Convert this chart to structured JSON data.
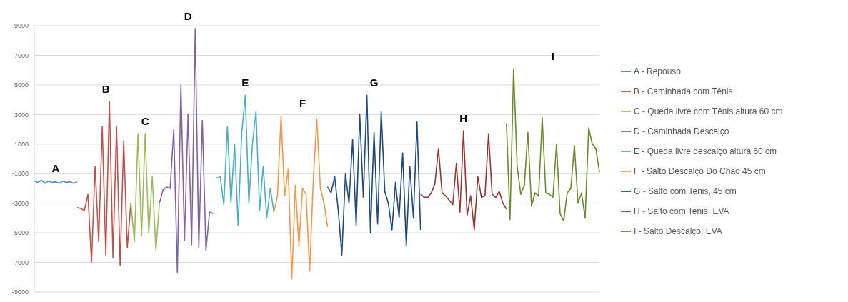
{
  "chart_data": {
    "type": "line",
    "categories": [
      null,
      null,
      null,
      null,
      null,
      null,
      null,
      null,
      null,
      null,
      null,
      null,
      null,
      null,
      null,
      null,
      null,
      null,
      null,
      null,
      null,
      null,
      null,
      null,
      null,
      null,
      null,
      null,
      null,
      null,
      null,
      null,
      null,
      null,
      null,
      null,
      null,
      null,
      null,
      null,
      null,
      null,
      null,
      null,
      null,
      null,
      null,
      null,
      null,
      null,
      null,
      null,
      null,
      null,
      null,
      null,
      null,
      null,
      null,
      null,
      null,
      null,
      null,
      null,
      null,
      null,
      null,
      null,
      null,
      null,
      null,
      null,
      null,
      null,
      null,
      null,
      null,
      null,
      null,
      null,
      null,
      null,
      null,
      null,
      null,
      null,
      null,
      null,
      null,
      null,
      null,
      null,
      null,
      null,
      null,
      null,
      null,
      null,
      null,
      null,
      null,
      null,
      null,
      null,
      null,
      null,
      null,
      null,
      null,
      null,
      null,
      null,
      null,
      null,
      null,
      null,
      null,
      null,
      null,
      null,
      null,
      null,
      null,
      null,
      null,
      null,
      null,
      null,
      null,
      null,
      null,
      null,
      null,
      null,
      null,
      null,
      null,
      null,
      null,
      null,
      null,
      null,
      null,
      null,
      null,
      null,
      null,
      null,
      null,
      null,
      null,
      null,
      null,
      null,
      null,
      null,
      null,
      null,
      null
    ],
    "series": [
      {
        "name": "A - Repouso",
        "color": "#4a86c5",
        "values": [
          -1500,
          -1600,
          -1450,
          -1650,
          -1500,
          -1600,
          -1550,
          -1650,
          -1500,
          -1600,
          -1550,
          -1650,
          -1550,
          null,
          null,
          null,
          null,
          null,
          null,
          null,
          null,
          null,
          null,
          null,
          null,
          null,
          null,
          null,
          null,
          null,
          null,
          null,
          null,
          null,
          null,
          null,
          null,
          null,
          null,
          null,
          null,
          null,
          null,
          null,
          null,
          null,
          null,
          null,
          null,
          null,
          null,
          null,
          null,
          null,
          null,
          null,
          null,
          null,
          null,
          null,
          null,
          null,
          null,
          null,
          null,
          null,
          null,
          null,
          null,
          null,
          null,
          null,
          null,
          null,
          null,
          null,
          null,
          null,
          null,
          null,
          null,
          null,
          null,
          null,
          null,
          null,
          null,
          null,
          null,
          null,
          null,
          null,
          null,
          null,
          null,
          null,
          null,
          null,
          null,
          null,
          null,
          null,
          null,
          null,
          null,
          null,
          null,
          null,
          null,
          null,
          null,
          null,
          null,
          null,
          null,
          null,
          null,
          null,
          null,
          null,
          null,
          null,
          null,
          null,
          null,
          null,
          null,
          null,
          null,
          null,
          null,
          null,
          null,
          null,
          null,
          null,
          null,
          null,
          null,
          null,
          null,
          null,
          null,
          null,
          null,
          null,
          null,
          null,
          null,
          null,
          null,
          null,
          null,
          null,
          null,
          null,
          null,
          null,
          null
        ]
      },
      {
        "name": "B - Caminhada com Tênis",
        "color": "#c0504d",
        "values": [
          null,
          null,
          null,
          null,
          null,
          null,
          null,
          null,
          null,
          null,
          null,
          null,
          -3300,
          -3350,
          -3500,
          -2400,
          -7000,
          -500,
          -5600,
          2200,
          -6500,
          3900,
          -6700,
          2200,
          -7200,
          1200,
          -6000,
          -3000,
          null,
          null,
          null,
          null,
          null,
          null,
          null,
          null,
          null,
          null,
          null,
          null,
          null,
          null,
          null,
          null,
          null,
          null,
          null,
          null,
          null,
          null,
          null,
          null,
          null,
          null,
          null,
          null,
          null,
          null,
          null,
          null,
          null,
          null,
          null,
          null,
          null,
          null,
          null,
          null,
          null,
          null,
          null,
          null,
          null,
          null,
          null,
          null,
          null,
          null,
          null,
          null,
          null,
          null,
          null,
          null,
          null,
          null,
          null,
          null,
          null,
          null,
          null,
          null,
          null,
          null,
          null,
          null,
          null,
          null,
          null,
          null,
          null,
          null,
          null,
          null,
          null,
          null,
          null,
          null,
          null,
          null,
          null,
          null,
          null,
          null,
          null,
          null,
          null,
          null,
          null,
          null,
          null,
          null,
          null,
          null,
          null,
          null,
          null,
          null,
          null,
          null,
          null,
          null,
          null,
          null,
          null,
          null,
          null,
          null,
          null,
          null,
          null,
          null,
          null,
          null,
          null,
          null,
          null,
          null,
          null,
          null,
          null,
          null,
          null,
          null,
          null,
          null,
          null,
          null,
          null
        ]
      },
      {
        "name": "C - Queda livre com Tênis altura 60 cm",
        "color": "#9bbb59",
        "values": [
          null,
          null,
          null,
          null,
          null,
          null,
          null,
          null,
          null,
          null,
          null,
          null,
          null,
          null,
          null,
          null,
          null,
          null,
          null,
          null,
          null,
          null,
          null,
          null,
          null,
          null,
          null,
          -3000,
          -5600,
          1700,
          -5200,
          1700,
          -5000,
          -1200,
          -6200,
          -3000,
          null,
          null,
          null,
          null,
          null,
          null,
          null,
          null,
          null,
          null,
          null,
          null,
          null,
          null,
          null,
          null,
          null,
          null,
          null,
          null,
          null,
          null,
          null,
          null,
          null,
          null,
          null,
          null,
          null,
          null,
          null,
          null,
          null,
          null,
          null,
          null,
          null,
          null,
          null,
          null,
          null,
          null,
          null,
          null,
          null,
          null,
          null,
          null,
          null,
          null,
          null,
          null,
          null,
          null,
          null,
          null,
          null,
          null,
          null,
          null,
          null,
          null,
          null,
          null,
          null,
          null,
          null,
          null,
          null,
          null,
          null,
          null,
          null,
          null,
          null,
          null,
          null,
          null,
          null,
          null,
          null,
          null,
          null,
          null,
          null,
          null,
          null,
          null,
          null,
          null,
          null,
          null,
          null,
          null,
          null,
          null,
          null,
          null,
          null,
          null,
          null,
          null,
          null,
          null,
          null,
          null,
          null,
          null,
          null,
          null,
          null,
          null,
          null,
          null,
          null,
          null,
          null,
          null,
          null,
          null,
          null,
          null,
          null
        ]
      },
      {
        "name": "D - Caminhada Descalço",
        "color": "#8064a2",
        "values": [
          null,
          null,
          null,
          null,
          null,
          null,
          null,
          null,
          null,
          null,
          null,
          null,
          null,
          null,
          null,
          null,
          null,
          null,
          null,
          null,
          null,
          null,
          null,
          null,
          null,
          null,
          null,
          null,
          null,
          null,
          null,
          null,
          null,
          null,
          null,
          -3000,
          -2100,
          -1900,
          -2000,
          2000,
          -7700,
          5000,
          -5500,
          3000,
          -5800,
          8800,
          -6000,
          2600,
          -6200,
          -3600,
          -3700,
          null,
          null,
          null,
          null,
          null,
          null,
          null,
          null,
          null,
          null,
          null,
          null,
          null,
          null,
          null,
          null,
          null,
          null,
          null,
          null,
          null,
          null,
          null,
          null,
          null,
          null,
          null,
          null,
          null,
          null,
          null,
          null,
          null,
          null,
          null,
          null,
          null,
          null,
          null,
          null,
          null,
          null,
          null,
          null,
          null,
          null,
          null,
          null,
          null,
          null,
          null,
          null,
          null,
          null,
          null,
          null,
          null,
          null,
          null,
          null,
          null,
          null,
          null,
          null,
          null,
          null,
          null,
          null,
          null,
          null,
          null,
          null,
          null,
          null,
          null,
          null,
          null,
          null,
          null,
          null,
          null,
          null,
          null,
          null,
          null,
          null,
          null,
          null,
          null,
          null,
          null,
          null,
          null,
          null,
          null,
          null,
          null,
          null,
          null,
          null,
          null,
          null,
          null,
          null,
          null,
          null,
          null,
          null
        ]
      },
      {
        "name": "E - Queda livre descalço altura 60 cm",
        "color": "#4bacc6",
        "values": [
          null,
          null,
          null,
          null,
          null,
          null,
          null,
          null,
          null,
          null,
          null,
          null,
          null,
          null,
          null,
          null,
          null,
          null,
          null,
          null,
          null,
          null,
          null,
          null,
          null,
          null,
          null,
          null,
          null,
          null,
          null,
          null,
          null,
          null,
          null,
          null,
          null,
          null,
          null,
          null,
          null,
          null,
          null,
          null,
          null,
          null,
          null,
          null,
          null,
          null,
          null,
          -1300,
          -1200,
          -3100,
          2200,
          -3000,
          1000,
          -4500,
          1700,
          4300,
          -3000,
          1000,
          3200,
          -3500,
          -500,
          -4000,
          -2000,
          -3600,
          null,
          null,
          null,
          null,
          null,
          null,
          null,
          null,
          null,
          null,
          null,
          null,
          null,
          null,
          null,
          null,
          null,
          null,
          null,
          null,
          null,
          null,
          null,
          null,
          null,
          null,
          null,
          null,
          null,
          null,
          null,
          null,
          null,
          null,
          null,
          null,
          null,
          null,
          null,
          null,
          null,
          null,
          null,
          null,
          null,
          null,
          null,
          null,
          null,
          null,
          null,
          null,
          null,
          null,
          null,
          null,
          null,
          null,
          null,
          null,
          null,
          null,
          null,
          null,
          null,
          null,
          null,
          null,
          null,
          null,
          null,
          null,
          null,
          null,
          null,
          null,
          null,
          null,
          null,
          null,
          null,
          null,
          null,
          null,
          null,
          null,
          null,
          null,
          null,
          null,
          null
        ]
      },
      {
        "name": "F - Salto Descalço Do Chão 45 cm",
        "color": "#f79646",
        "values": [
          null,
          null,
          null,
          null,
          null,
          null,
          null,
          null,
          null,
          null,
          null,
          null,
          null,
          null,
          null,
          null,
          null,
          null,
          null,
          null,
          null,
          null,
          null,
          null,
          null,
          null,
          null,
          null,
          null,
          null,
          null,
          null,
          null,
          null,
          null,
          null,
          null,
          null,
          null,
          null,
          null,
          null,
          null,
          null,
          null,
          null,
          null,
          null,
          null,
          null,
          null,
          null,
          null,
          null,
          null,
          null,
          null,
          null,
          null,
          null,
          null,
          null,
          null,
          null,
          null,
          null,
          null,
          -3600,
          -2500,
          2900,
          -2500,
          -700,
          -8100,
          -1800,
          -5900,
          -2000,
          -2400,
          -7600,
          -1500,
          2700,
          -2000,
          -3000,
          -4600,
          null,
          null,
          null,
          null,
          null,
          null,
          null,
          null,
          null,
          null,
          null,
          null,
          null,
          null,
          null,
          null,
          null,
          null,
          null,
          null,
          null,
          null,
          null,
          null,
          null,
          null,
          null,
          null,
          null,
          null,
          null,
          null,
          null,
          null,
          null,
          null,
          null,
          null,
          null,
          null,
          null,
          null,
          null,
          null,
          null,
          null,
          null,
          null,
          null,
          null,
          null,
          null,
          null,
          null,
          null,
          null,
          null,
          null,
          null,
          null,
          null,
          null,
          null,
          null,
          null,
          null,
          null,
          null,
          null,
          null,
          null,
          null,
          null,
          null,
          null,
          null
        ]
      },
      {
        "name": "G - Salto com Tenis, 45 cm",
        "color": "#1f497d",
        "values": [
          null,
          null,
          null,
          null,
          null,
          null,
          null,
          null,
          null,
          null,
          null,
          null,
          null,
          null,
          null,
          null,
          null,
          null,
          null,
          null,
          null,
          null,
          null,
          null,
          null,
          null,
          null,
          null,
          null,
          null,
          null,
          null,
          null,
          null,
          null,
          null,
          null,
          null,
          null,
          null,
          null,
          null,
          null,
          null,
          null,
          null,
          null,
          null,
          null,
          null,
          null,
          null,
          null,
          null,
          null,
          null,
          null,
          null,
          null,
          null,
          null,
          null,
          null,
          null,
          null,
          null,
          null,
          null,
          null,
          null,
          null,
          null,
          null,
          null,
          null,
          null,
          null,
          null,
          null,
          null,
          null,
          null,
          -1900,
          -2300,
          -1200,
          -3500,
          -6500,
          -1000,
          -3000,
          1300,
          -4500,
          3000,
          -2600,
          4300,
          -5000,
          1800,
          -4400,
          3200,
          -2200,
          -3000,
          -4800,
          -1600,
          -4000,
          400,
          -5900,
          -500,
          -4000,
          2500,
          -4800,
          null,
          null,
          null,
          null,
          null,
          null,
          null,
          null,
          null,
          null,
          null,
          null,
          null,
          null,
          null,
          null,
          null,
          null,
          null,
          null,
          null,
          null,
          null,
          null,
          null,
          null,
          null,
          null,
          null,
          null,
          null,
          null,
          null,
          null,
          null,
          null,
          null,
          null,
          null,
          null,
          null,
          null,
          null,
          null,
          null,
          null,
          null,
          null,
          null,
          null
        ]
      },
      {
        "name": "H - Salto com Tenis, EVA",
        "color": "#943634",
        "values": [
          null,
          null,
          null,
          null,
          null,
          null,
          null,
          null,
          null,
          null,
          null,
          null,
          null,
          null,
          null,
          null,
          null,
          null,
          null,
          null,
          null,
          null,
          null,
          null,
          null,
          null,
          null,
          null,
          null,
          null,
          null,
          null,
          null,
          null,
          null,
          null,
          null,
          null,
          null,
          null,
          null,
          null,
          null,
          null,
          null,
          null,
          null,
          null,
          null,
          null,
          null,
          null,
          null,
          null,
          null,
          null,
          null,
          null,
          null,
          null,
          null,
          null,
          null,
          null,
          null,
          null,
          null,
          null,
          null,
          null,
          null,
          null,
          null,
          null,
          null,
          null,
          null,
          null,
          null,
          null,
          null,
          null,
          null,
          null,
          null,
          null,
          null,
          null,
          null,
          null,
          null,
          null,
          null,
          null,
          null,
          null,
          null,
          null,
          null,
          null,
          null,
          null,
          null,
          null,
          null,
          null,
          null,
          null,
          -2400,
          -2600,
          -2600,
          -2300,
          -1700,
          700,
          -2300,
          -2500,
          -2800,
          -3100,
          -300,
          -3600,
          1900,
          -3800,
          -2500,
          -4800,
          -1200,
          -2600,
          -2500,
          1700,
          -2400,
          -2600,
          -2200,
          -3000,
          -3400,
          null,
          null,
          null,
          null,
          null,
          null,
          null,
          null,
          null,
          null,
          null,
          null,
          null,
          null,
          null,
          null,
          null,
          null,
          null,
          null,
          null,
          null,
          null,
          null,
          null,
          null
        ]
      },
      {
        "name": "I - Salto Descalço, EVA",
        "color": "#6a8a2f",
        "values": [
          null,
          null,
          null,
          null,
          null,
          null,
          null,
          null,
          null,
          null,
          null,
          null,
          null,
          null,
          null,
          null,
          null,
          null,
          null,
          null,
          null,
          null,
          null,
          null,
          null,
          null,
          null,
          null,
          null,
          null,
          null,
          null,
          null,
          null,
          null,
          null,
          null,
          null,
          null,
          null,
          null,
          null,
          null,
          null,
          null,
          null,
          null,
          null,
          null,
          null,
          null,
          null,
          null,
          null,
          null,
          null,
          null,
          null,
          null,
          null,
          null,
          null,
          null,
          null,
          null,
          null,
          null,
          null,
          null,
          null,
          null,
          null,
          null,
          null,
          null,
          null,
          null,
          null,
          null,
          null,
          null,
          null,
          null,
          null,
          null,
          null,
          null,
          null,
          null,
          null,
          null,
          null,
          null,
          null,
          null,
          null,
          null,
          null,
          null,
          null,
          null,
          null,
          null,
          null,
          null,
          null,
          null,
          null,
          null,
          null,
          null,
          null,
          null,
          null,
          null,
          null,
          null,
          null,
          null,
          null,
          null,
          null,
          null,
          null,
          null,
          null,
          null,
          null,
          null,
          null,
          null,
          null,
          2400,
          -4100,
          6100,
          -500,
          -2400,
          -1800,
          1800,
          -3200,
          -2300,
          -2500,
          2800,
          -2300,
          -2400,
          -2600,
          1000,
          -3700,
          -4200,
          -2300,
          -2000,
          900,
          -3000,
          -2300,
          -4000,
          2100,
          1000,
          700,
          -900
        ]
      }
    ],
    "annotations": [
      "A",
      "B",
      "C",
      "D",
      "E",
      "F",
      "G",
      "H",
      "I"
    ],
    "ylim": [
      -9000,
      9000
    ],
    "yticks": [
      -9000,
      -7000,
      -5000,
      -3000,
      -1000,
      1000,
      3000,
      5000,
      7000,
      9000
    ],
    "grid": "y",
    "legend": "right",
    "tick_labels": "y",
    "marker": "none",
    "line_style": "solid"
  }
}
